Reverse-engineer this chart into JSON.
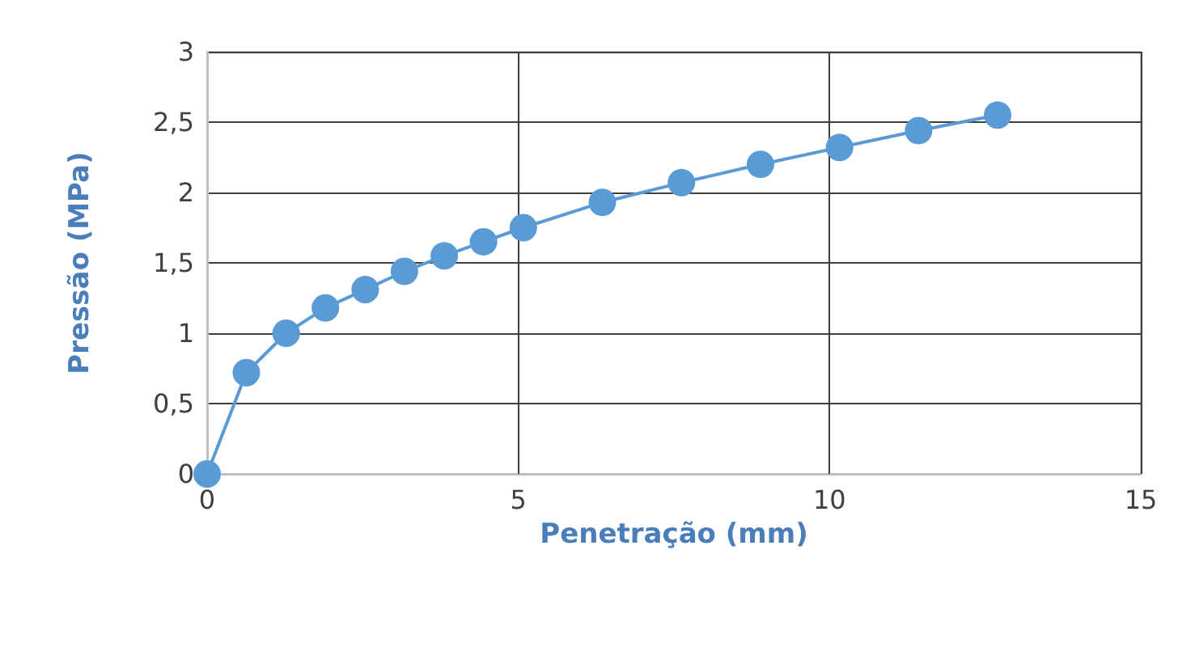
{
  "chart_data": {
    "type": "line",
    "xlabel": "Penetração (mm)",
    "ylabel": "Pressão (MPa)",
    "x": [
      0,
      0.63,
      1.27,
      1.9,
      2.54,
      3.17,
      3.81,
      4.44,
      5.08,
      6.35,
      7.62,
      8.89,
      10.16,
      11.43,
      12.7
    ],
    "series": [
      {
        "color": "#5b9bd5",
        "values": [
          0,
          0.72,
          1.0,
          1.18,
          1.31,
          1.44,
          1.55,
          1.65,
          1.75,
          1.93,
          2.07,
          2.2,
          2.32,
          2.44,
          2.55
        ]
      }
    ],
    "xlim": [
      0,
      15
    ],
    "xticks": [
      0,
      5,
      10,
      15
    ],
    "ylim": [
      0,
      3
    ],
    "yticks": [
      {
        "value": 0,
        "label": "0"
      },
      {
        "value": 0.5,
        "label": "0,5"
      },
      {
        "value": 1,
        "label": "1"
      },
      {
        "value": 1.5,
        "label": "1,5"
      },
      {
        "value": 2,
        "label": "2"
      },
      {
        "value": 2.5,
        "label": "2,5"
      },
      {
        "value": 3,
        "label": "3"
      }
    ],
    "grid": true,
    "marker": "circle",
    "line_style": "solid"
  }
}
